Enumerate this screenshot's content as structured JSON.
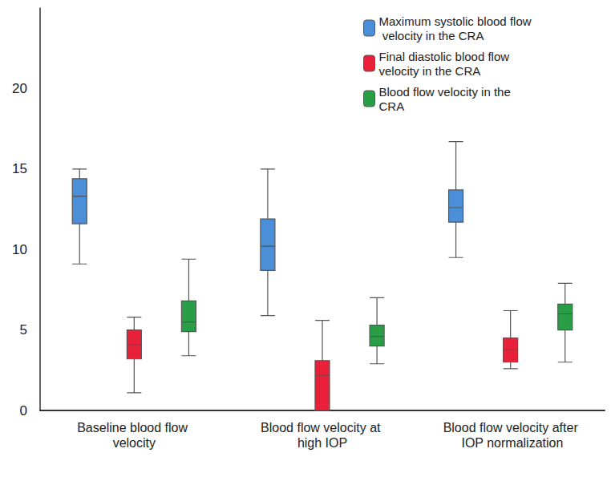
{
  "chart_data": {
    "type": "boxplot",
    "categories": [
      "Baseline blood flow velocity",
      "Blood flow velocity at high IOP",
      "Blood flow velocity after IOP normalization"
    ],
    "series": [
      {
        "name": "Maximum systolic blood flow velocity in the CRA",
        "color": "#4a8fd8",
        "values": [
          [
            9.1,
            11.6,
            13.3,
            14.4,
            15.0
          ],
          [
            5.9,
            8.7,
            10.2,
            11.9,
            15.0
          ],
          [
            9.5,
            11.7,
            12.6,
            13.7,
            16.7
          ]
        ]
      },
      {
        "name": "Final diastolic blood flow velocity in the CRA",
        "color": "#e8203a",
        "values": [
          [
            1.1,
            3.2,
            4.1,
            5.0,
            5.8
          ],
          [
            0,
            0,
            2.2,
            3.1,
            5.6
          ],
          [
            2.6,
            3.0,
            3.8,
            4.5,
            6.2
          ]
        ]
      },
      {
        "name": "Blood flow velocity in the CRA",
        "color": "#2a9e46",
        "values": [
          [
            3.4,
            4.9,
            5.5,
            6.8,
            9.4
          ],
          [
            2.9,
            4.0,
            4.6,
            5.3,
            7.0
          ],
          [
            3.0,
            5.0,
            6.0,
            6.6,
            7.9
          ]
        ]
      }
    ],
    "ylim": [
      0,
      25
    ],
    "yticks": [
      0,
      5,
      10,
      15,
      20
    ],
    "grid": false,
    "legend": "upper right"
  }
}
